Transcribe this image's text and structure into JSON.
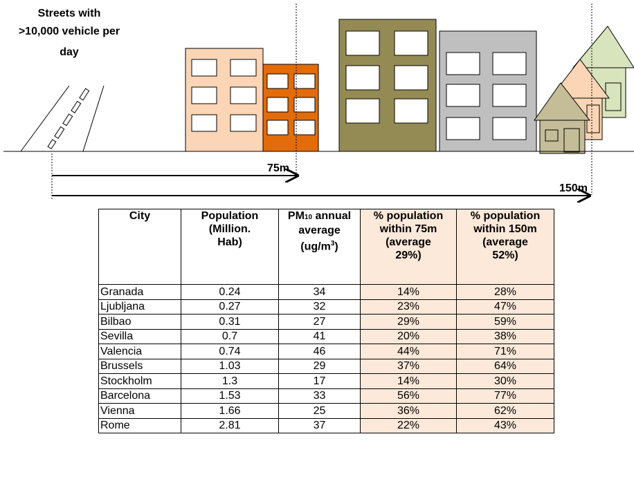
{
  "diagram": {
    "street_label": [
      "Streets with",
      ">10,000 vehicle per",
      "day"
    ],
    "distance_75": "75m",
    "distance_150": "150m"
  },
  "table": {
    "headers": [
      [
        "City"
      ],
      [
        "Population",
        "(Million.",
        "Hab)"
      ],
      [
        "PM",
        "10",
        " annual",
        "average",
        "(ug/m",
        "3",
        ")"
      ],
      [
        "% population",
        "within 75m",
        "(average",
        "29%)"
      ],
      [
        "% population",
        "within 150m",
        "(average",
        "52%)"
      ]
    ],
    "rows": [
      [
        "Granada",
        "0.24",
        "34",
        "14%",
        "28%"
      ],
      [
        "Ljubljana",
        "0.27",
        "32",
        "23%",
        "47%"
      ],
      [
        "Bilbao",
        "0.31",
        "27",
        "29%",
        "59%"
      ],
      [
        "Sevilla",
        "0.7",
        "41",
        "20%",
        "38%"
      ],
      [
        "Valencia",
        "0.74",
        "46",
        "44%",
        "71%"
      ],
      [
        "Brussels",
        "1.03",
        "29",
        "37%",
        "64%"
      ],
      [
        "Stockholm",
        "1.3",
        "17",
        "14%",
        "30%"
      ],
      [
        "Barcelona",
        "1.53",
        "33",
        "56%",
        "77%"
      ],
      [
        "Vienna",
        "1.66",
        "25",
        "36%",
        "62%"
      ],
      [
        "Rome",
        "2.81",
        "37",
        "22%",
        "43%"
      ]
    ]
  }
}
